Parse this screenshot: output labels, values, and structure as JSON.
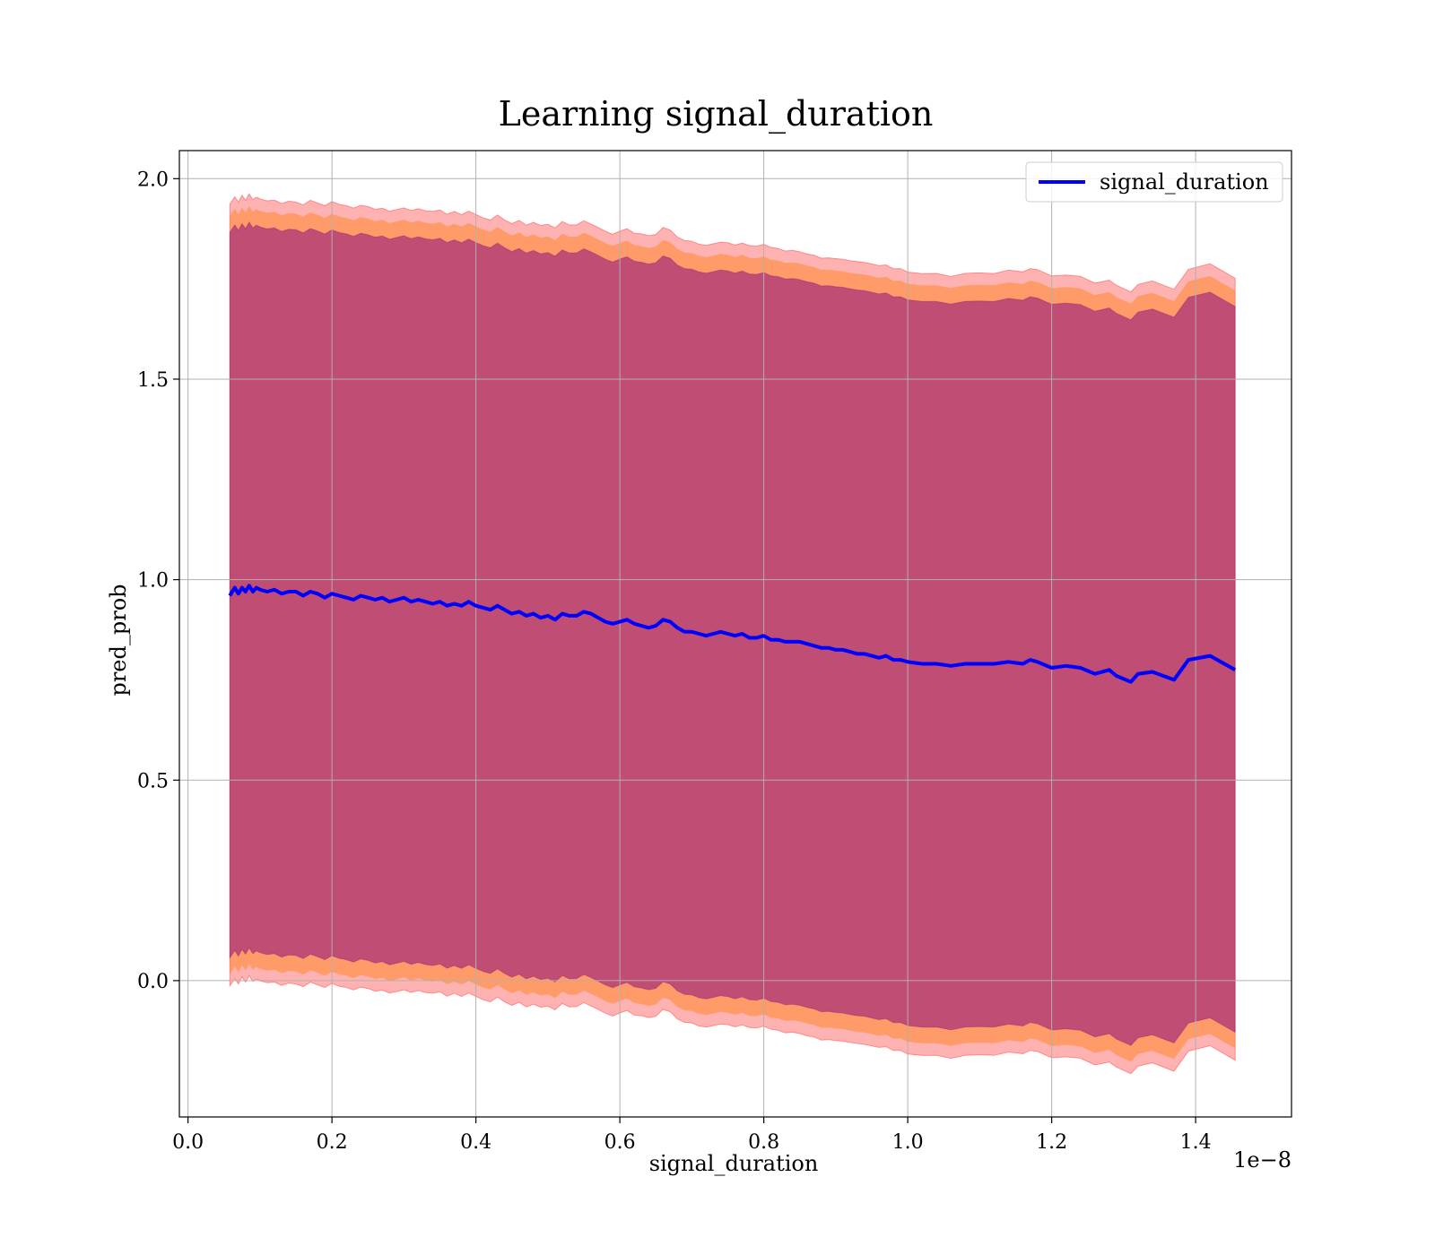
{
  "chart_data": {
    "type": "line",
    "title": "Learning signal_duration",
    "xlabel": "signal_duration",
    "ylabel": "pred_prob",
    "x_offset_text": "1e−8",
    "x_scale": 1e-08,
    "xlim": [
      -0.012,
      1.5332
    ],
    "ylim": [
      -0.34,
      2.07
    ],
    "x_ticks": [
      0.0,
      0.2,
      0.4,
      0.6,
      0.8,
      1.0,
      1.2,
      1.4
    ],
    "x_tick_labels": [
      "0.0",
      "0.2",
      "0.4",
      "0.6",
      "0.8",
      "1.0",
      "1.2",
      "1.4"
    ],
    "y_ticks": [
      0.0,
      0.5,
      1.0,
      1.5,
      2.0
    ],
    "y_tick_labels": [
      "0.0",
      "0.5",
      "1.0",
      "1.5",
      "2.0"
    ],
    "grid": true,
    "legend": {
      "position": "top-right",
      "entries": [
        "signal_duration"
      ]
    },
    "colors": {
      "line": "#0000ff",
      "band_outer": "#ff0000",
      "band_middle": "#ff7f0e",
      "band_inner": "#800080",
      "grid": "#b0b0b0"
    },
    "band_half_widths": {
      "outer": 0.975,
      "middle": 0.945,
      "inner": 0.905
    },
    "series": [
      {
        "name": "signal_duration",
        "x": [
          0.058,
          0.065,
          0.07,
          0.075,
          0.08,
          0.085,
          0.09,
          0.095,
          0.1,
          0.11,
          0.12,
          0.13,
          0.14,
          0.15,
          0.16,
          0.17,
          0.18,
          0.19,
          0.2,
          0.21,
          0.22,
          0.23,
          0.24,
          0.25,
          0.26,
          0.27,
          0.28,
          0.29,
          0.3,
          0.31,
          0.32,
          0.33,
          0.34,
          0.35,
          0.36,
          0.37,
          0.38,
          0.39,
          0.4,
          0.41,
          0.42,
          0.43,
          0.44,
          0.45,
          0.46,
          0.47,
          0.48,
          0.49,
          0.5,
          0.51,
          0.52,
          0.53,
          0.54,
          0.55,
          0.56,
          0.57,
          0.58,
          0.59,
          0.6,
          0.61,
          0.62,
          0.63,
          0.64,
          0.65,
          0.66,
          0.67,
          0.68,
          0.69,
          0.7,
          0.71,
          0.72,
          0.73,
          0.74,
          0.75,
          0.76,
          0.77,
          0.78,
          0.79,
          0.8,
          0.81,
          0.82,
          0.83,
          0.84,
          0.85,
          0.86,
          0.87,
          0.88,
          0.89,
          0.9,
          0.91,
          0.92,
          0.93,
          0.94,
          0.95,
          0.96,
          0.97,
          0.98,
          0.99,
          1.0,
          1.02,
          1.04,
          1.06,
          1.08,
          1.1,
          1.12,
          1.14,
          1.16,
          1.17,
          1.18,
          1.2,
          1.22,
          1.24,
          1.26,
          1.28,
          1.29,
          1.31,
          1.32,
          1.34,
          1.37,
          1.39,
          1.42,
          1.455
        ],
        "values": [
          0.96,
          0.98,
          0.965,
          0.98,
          0.97,
          0.985,
          0.97,
          0.98,
          0.975,
          0.97,
          0.975,
          0.965,
          0.97,
          0.97,
          0.96,
          0.97,
          0.965,
          0.955,
          0.965,
          0.96,
          0.955,
          0.95,
          0.96,
          0.955,
          0.95,
          0.955,
          0.945,
          0.95,
          0.955,
          0.945,
          0.95,
          0.945,
          0.94,
          0.945,
          0.935,
          0.94,
          0.935,
          0.945,
          0.935,
          0.93,
          0.925,
          0.935,
          0.925,
          0.915,
          0.92,
          0.91,
          0.915,
          0.905,
          0.91,
          0.9,
          0.915,
          0.91,
          0.91,
          0.92,
          0.915,
          0.905,
          0.895,
          0.89,
          0.895,
          0.9,
          0.89,
          0.885,
          0.88,
          0.885,
          0.9,
          0.895,
          0.88,
          0.87,
          0.87,
          0.865,
          0.86,
          0.865,
          0.87,
          0.865,
          0.86,
          0.865,
          0.855,
          0.855,
          0.86,
          0.85,
          0.85,
          0.845,
          0.845,
          0.845,
          0.84,
          0.835,
          0.83,
          0.83,
          0.825,
          0.825,
          0.82,
          0.815,
          0.815,
          0.81,
          0.805,
          0.81,
          0.8,
          0.8,
          0.795,
          0.79,
          0.79,
          0.785,
          0.79,
          0.79,
          0.79,
          0.795,
          0.79,
          0.8,
          0.795,
          0.78,
          0.785,
          0.78,
          0.765,
          0.775,
          0.76,
          0.745,
          0.765,
          0.77,
          0.75,
          0.8,
          0.81,
          0.775
        ]
      }
    ]
  }
}
